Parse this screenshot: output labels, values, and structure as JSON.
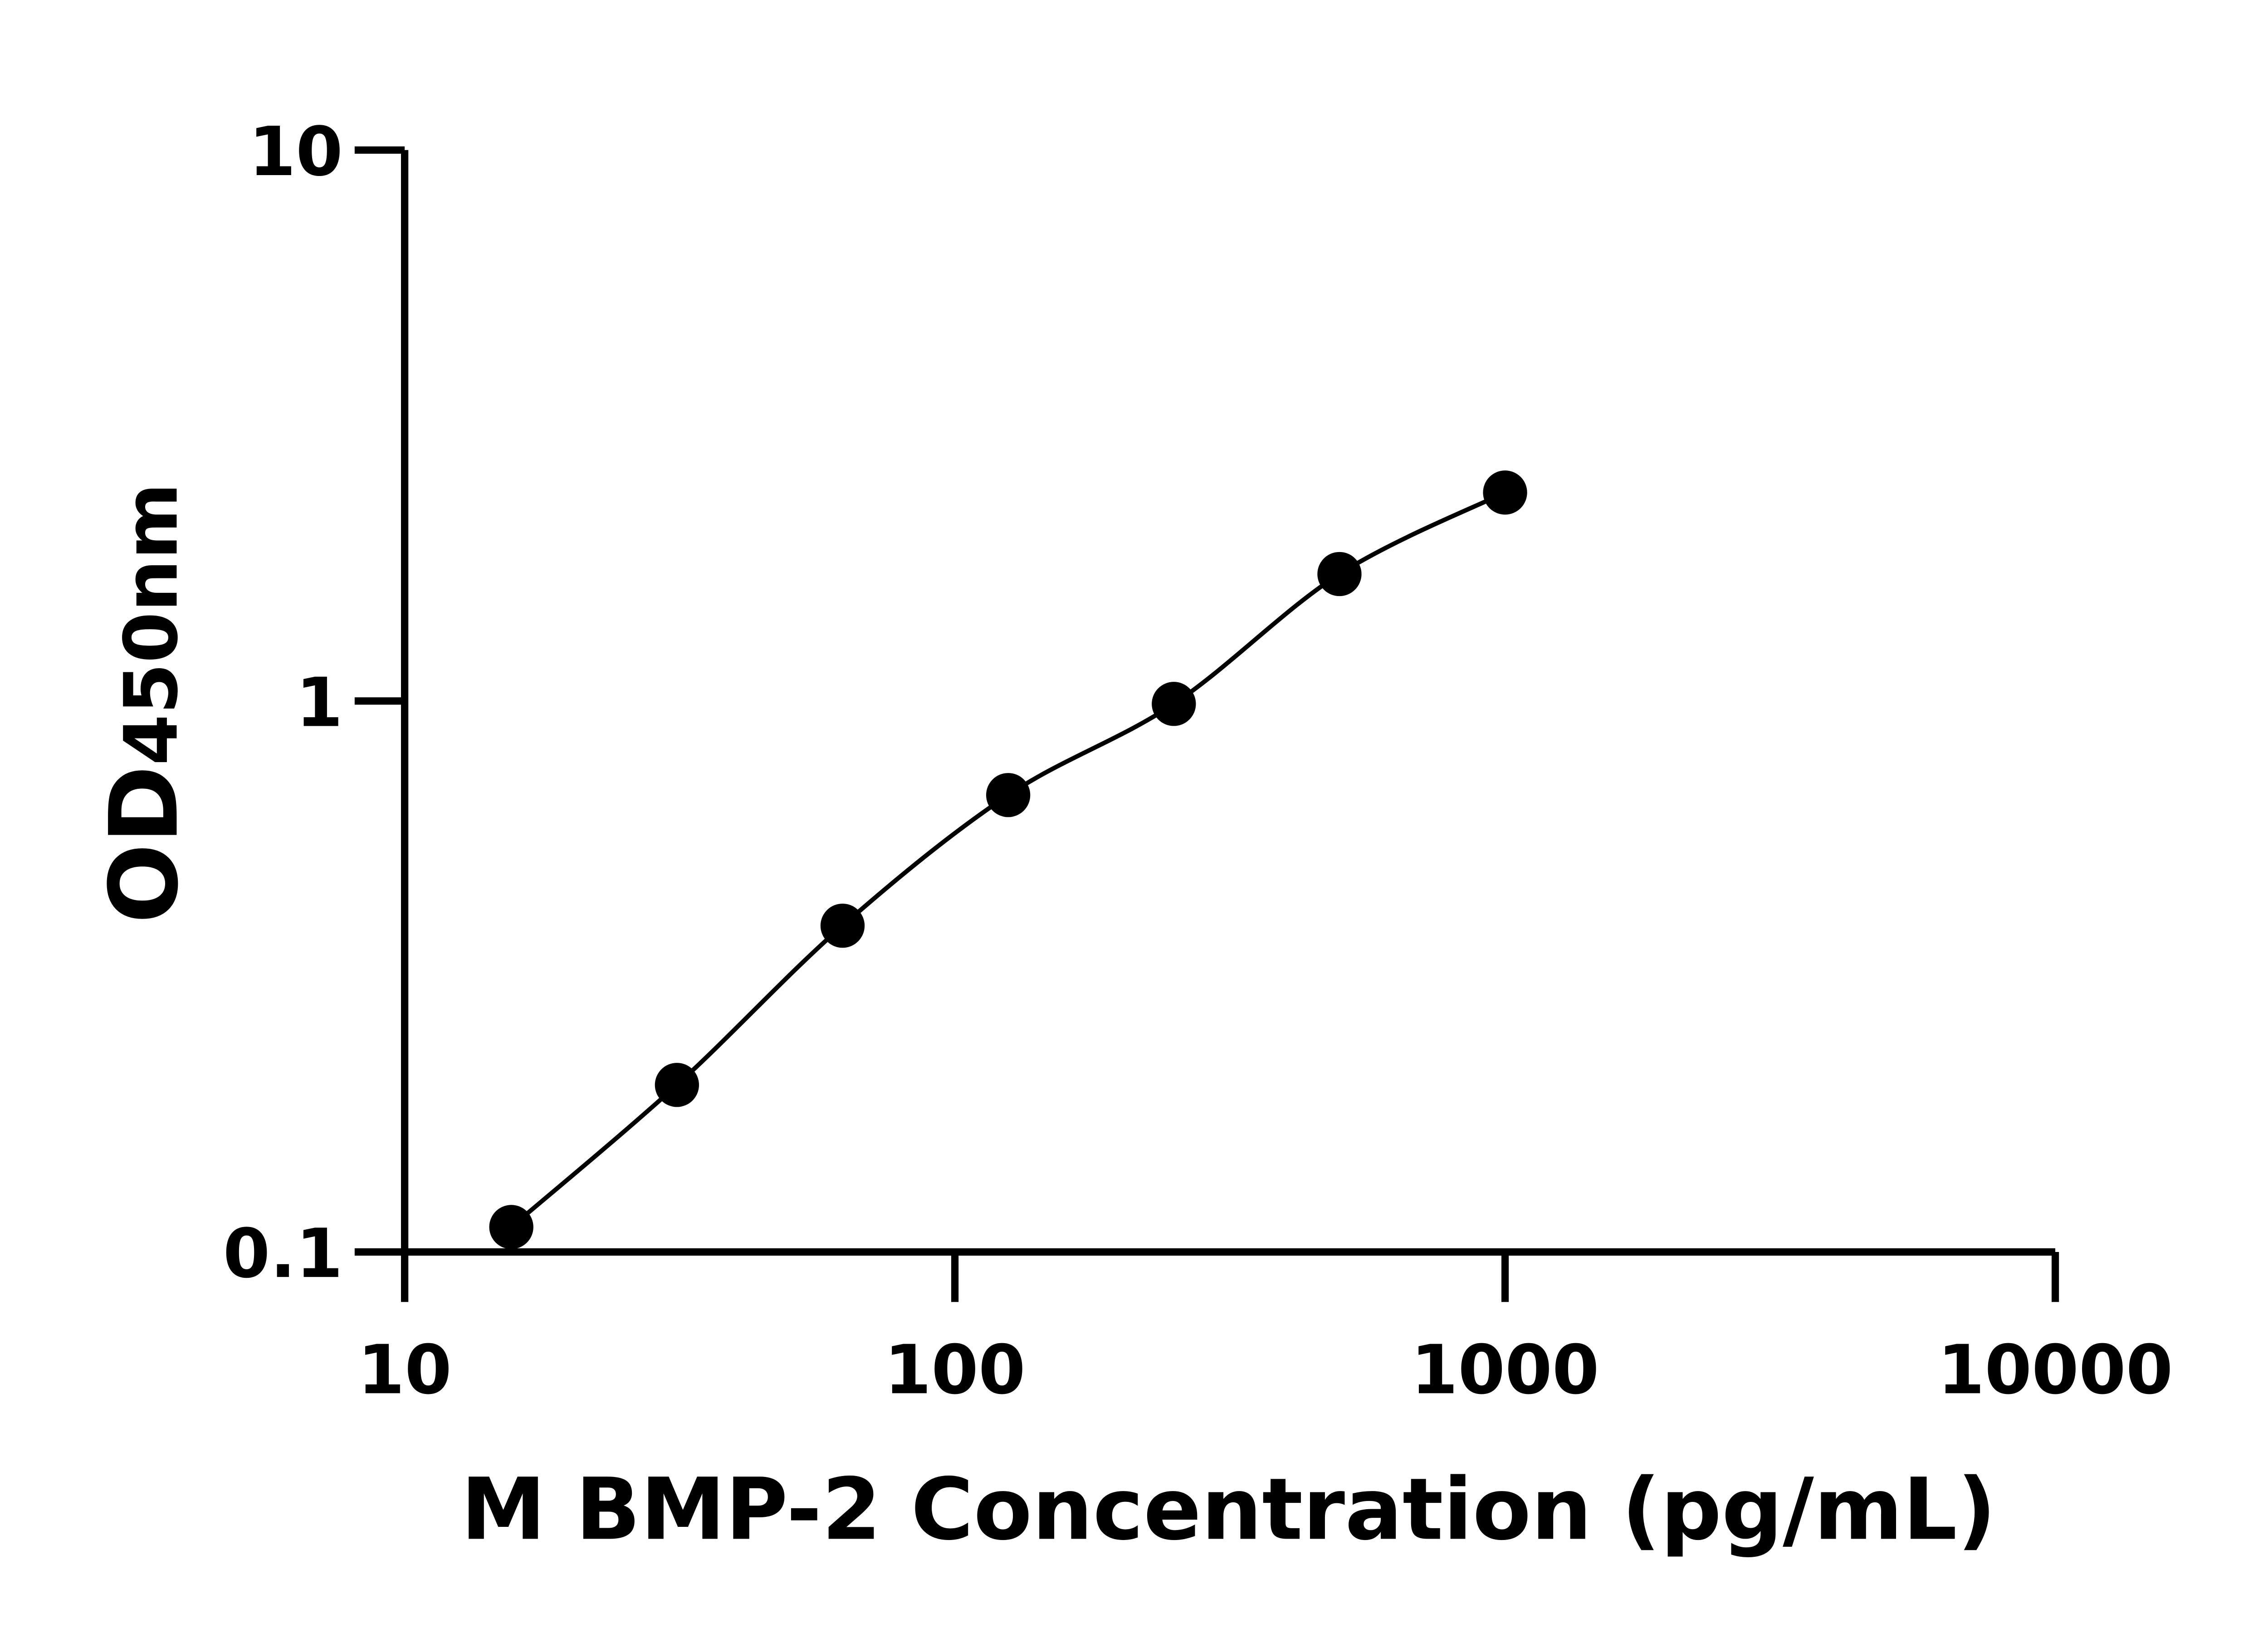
{
  "chart_data": {
    "type": "scatter",
    "title": "",
    "xlabel": "M BMP-2 Concentration (pg/mL)",
    "ylabel_main": "OD",
    "ylabel_sub": "450nm",
    "x_scale": "log",
    "y_scale": "log",
    "xlim": [
      10,
      10000
    ],
    "ylim": [
      0.1,
      10
    ],
    "x_ticks": [
      10,
      100,
      1000,
      10000
    ],
    "x_tick_labels": [
      "10",
      "100",
      "1000",
      "10000"
    ],
    "y_ticks": [
      0.1,
      1,
      10
    ],
    "y_tick_labels": [
      "0.1",
      "1",
      "10"
    ],
    "grid": false,
    "legend": "none",
    "fit_line": true,
    "marker_color": "#000000",
    "series": [
      {
        "x": [
          15.625,
          31.25,
          62.5,
          125,
          250,
          500,
          1000
        ],
        "y": [
          0.111,
          0.201,
          0.391,
          0.675,
          0.988,
          1.7,
          2.39
        ]
      }
    ]
  }
}
